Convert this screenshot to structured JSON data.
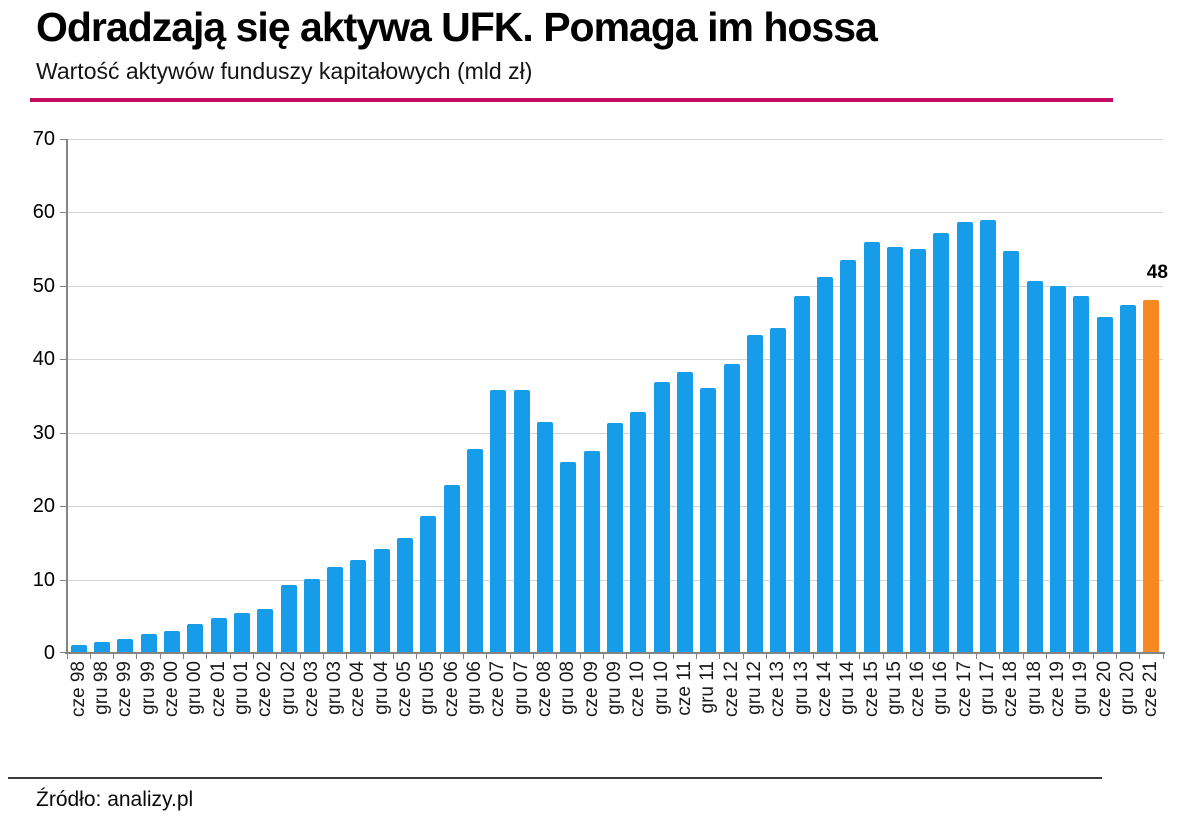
{
  "header": {
    "title": "Odradzają się aktywa UFK. Pomaga im hossa",
    "subtitle": "Wartość aktywów funduszy kapitałowych (mld zł)"
  },
  "footer": {
    "source": "Źródło: analizy.pl"
  },
  "colors": {
    "bar": "#179ce9",
    "highlight": "#f68a21",
    "accent_line": "#c30b63",
    "grid": "#d4d4d4",
    "axis": "#848484"
  },
  "chart_data": {
    "type": "bar",
    "title": "Odradzają się aktywa UFK. Pomaga im hossa",
    "subtitle": "Wartość aktywów funduszy kapitałowych (mld zł)",
    "unit": "mld zł",
    "categories": [
      "cze 98",
      "gru 98",
      "cze 99",
      "gru 99",
      "cze 00",
      "gru 00",
      "cze 01",
      "gru 01",
      "cze 02",
      "gru 02",
      "cze 03",
      "gru 03",
      "cze 04",
      "gru 04",
      "cze 05",
      "gru 05",
      "cze 06",
      "gru 06",
      "cze 07",
      "gru 07",
      "cze 08",
      "gru 08",
      "cze 09",
      "gru 09",
      "cze 10",
      "gru 10",
      "cze 11",
      "gru 11",
      "cze 12",
      "gru 12",
      "cze 13",
      "gru 13",
      "cze 14",
      "gru 14",
      "cze 15",
      "gru 15",
      "cze 16",
      "gru 16",
      "cze 17",
      "gru 17",
      "cze 18",
      "gru 18",
      "cze 19",
      "gru 19",
      "cze 20",
      "gru 20",
      "cze 21"
    ],
    "values": [
      0.9,
      1.4,
      1.8,
      2.4,
      2.9,
      3.8,
      4.6,
      5.3,
      5.9,
      9.1,
      10.0,
      11.6,
      12.5,
      14.0,
      15.5,
      18.5,
      22.8,
      27.7,
      35.7,
      35.7,
      31.3,
      25.9,
      27.4,
      31.2,
      32.7,
      36.8,
      38.1,
      36.0,
      39.2,
      43.2,
      44.1,
      48.5,
      51.1,
      53.4,
      55.9,
      55.2,
      54.9,
      57.0,
      58.6,
      58.9,
      54.6,
      50.5,
      49.9,
      48.5,
      45.6,
      47.3,
      48
    ],
    "highlight_index": 46,
    "annotation": {
      "text": "48",
      "category": "cze 21"
    },
    "ylim": [
      0,
      70
    ],
    "yticks": [
      0,
      10,
      20,
      30,
      40,
      50,
      60,
      70
    ],
    "grid": true,
    "legend": false,
    "xlabel": "",
    "ylabel": ""
  }
}
